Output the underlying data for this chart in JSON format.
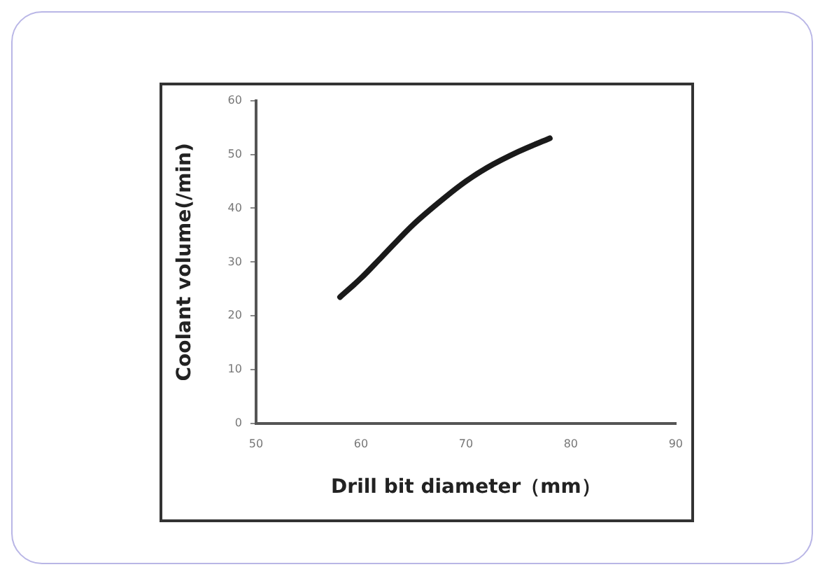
{
  "chart_data": {
    "type": "line",
    "xlabel": "Drill bit diameter（mm）",
    "ylabel": "Coolant volume(/min)",
    "x": [
      58,
      60,
      62,
      65,
      68,
      70,
      72,
      75,
      78
    ],
    "series": [
      {
        "color": "#1a1a1a",
        "values": [
          23.5,
          27,
          31,
          37,
          42,
          45,
          47.5,
          50.5,
          53
        ]
      }
    ],
    "xlim": [
      50,
      90
    ],
    "xticks": [
      50,
      60,
      70,
      80,
      90
    ],
    "ylim": [
      0,
      60
    ],
    "yticks": [
      0,
      10,
      20,
      30,
      40,
      50,
      60
    ],
    "grid": false,
    "legend": false,
    "marker": "none",
    "line_style": "solid"
  }
}
